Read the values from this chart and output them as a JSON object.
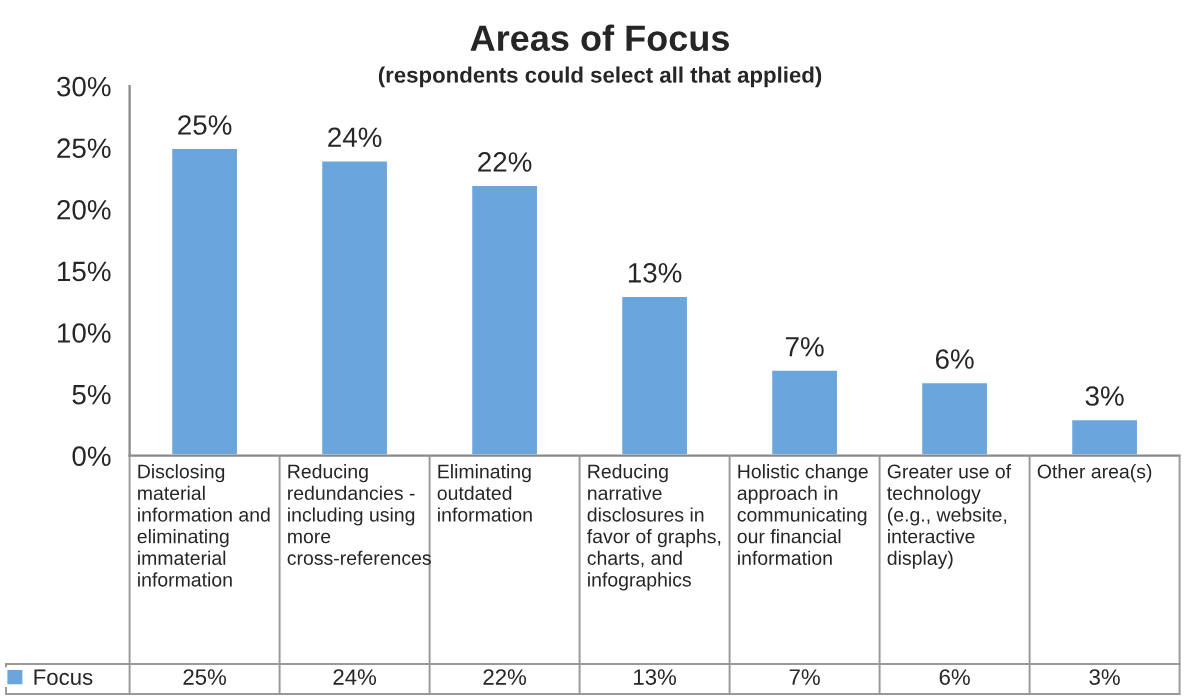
{
  "chart_data": {
    "type": "bar",
    "title": "Areas of Focus",
    "subtitle": "(respondents could select all that applied)",
    "categories": [
      "Disclosing material information and eliminating immaterial information",
      "Reducing redundancies - including using more cross-references",
      "Eliminating outdated information",
      "Reducing narrative disclosures in favor of graphs, charts, and infographics",
      "Holistic change approach in communicating our financial information",
      "Greater use of technology (e.g., website, interactive display)",
      "Other area(s)"
    ],
    "series": [
      {
        "name": "Focus",
        "color": "#6aa6dc",
        "values": [
          25,
          24,
          22,
          13,
          7,
          6,
          3
        ],
        "value_labels": [
          "25%",
          "24%",
          "22%",
          "13%",
          "7%",
          "6%",
          "3%"
        ]
      }
    ],
    "ylim": [
      0,
      30
    ],
    "yticks": [
      {
        "value": 0,
        "label": "0%"
      },
      {
        "value": 5,
        "label": "5%"
      },
      {
        "value": 10,
        "label": "10%"
      },
      {
        "value": 15,
        "label": "15%"
      },
      {
        "value": 20,
        "label": "20%"
      },
      {
        "value": 25,
        "label": "25%"
      },
      {
        "value": 30,
        "label": "30%"
      }
    ],
    "grid": false,
    "legend": "bottom left"
  }
}
